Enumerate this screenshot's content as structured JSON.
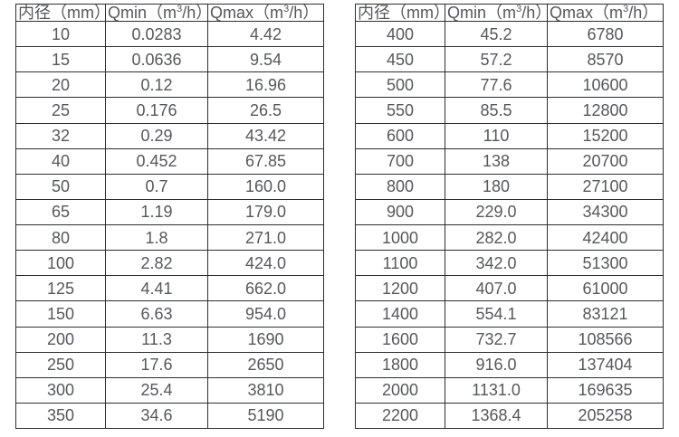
{
  "page": {
    "description_colors": {
      "background": "#ffffff",
      "text": "#55585c",
      "border": "#2e2e2e"
    }
  },
  "tables": [
    {
      "name": "flow-table-small-diameters",
      "headers": [
        "内径（mm）",
        "Qmin（m³/h）",
        "Qmax（m³/h）"
      ],
      "rows": [
        [
          "10",
          "0.0283",
          "4.42"
        ],
        [
          "15",
          "0.0636",
          "9.54"
        ],
        [
          "20",
          "0.12",
          "16.96"
        ],
        [
          "25",
          "0.176",
          "26.5"
        ],
        [
          "32",
          "0.29",
          "43.42"
        ],
        [
          "40",
          "0.452",
          "67.85"
        ],
        [
          "50",
          "0.7",
          "160.0"
        ],
        [
          "65",
          "1.19",
          "179.0"
        ],
        [
          "80",
          "1.8",
          "271.0"
        ],
        [
          "100",
          "2.82",
          "424.0"
        ],
        [
          "125",
          "4.41",
          "662.0"
        ],
        [
          "150",
          "6.63",
          "954.0"
        ],
        [
          "200",
          "11.3",
          "1690"
        ],
        [
          "250",
          "17.6",
          "2650"
        ],
        [
          "300",
          "25.4",
          "3810"
        ],
        [
          "350",
          "34.6",
          "5190"
        ]
      ]
    },
    {
      "name": "flow-table-large-diameters",
      "headers": [
        "内径（mm）",
        "Qmin（m³/h）",
        "Qmax（m³/h）"
      ],
      "rows": [
        [
          "400",
          "45.2",
          "6780"
        ],
        [
          "450",
          "57.2",
          "8570"
        ],
        [
          "500",
          "77.6",
          "10600"
        ],
        [
          "550",
          "85.5",
          "12800"
        ],
        [
          "600",
          "110",
          "15200"
        ],
        [
          "700",
          "138",
          "20700"
        ],
        [
          "800",
          "180",
          "27100"
        ],
        [
          "900",
          "229.0",
          "34300"
        ],
        [
          "1000",
          "282.0",
          "42400"
        ],
        [
          "1100",
          "342.0",
          "51300"
        ],
        [
          "1200",
          "407.0",
          "61000"
        ],
        [
          "1400",
          "554.1",
          "83121"
        ],
        [
          "1600",
          "732.7",
          "108566"
        ],
        [
          "1800",
          "916.0",
          "137404"
        ],
        [
          "2000",
          "1131.0",
          "169635"
        ],
        [
          "2200",
          "1368.4",
          "205258"
        ]
      ]
    }
  ]
}
